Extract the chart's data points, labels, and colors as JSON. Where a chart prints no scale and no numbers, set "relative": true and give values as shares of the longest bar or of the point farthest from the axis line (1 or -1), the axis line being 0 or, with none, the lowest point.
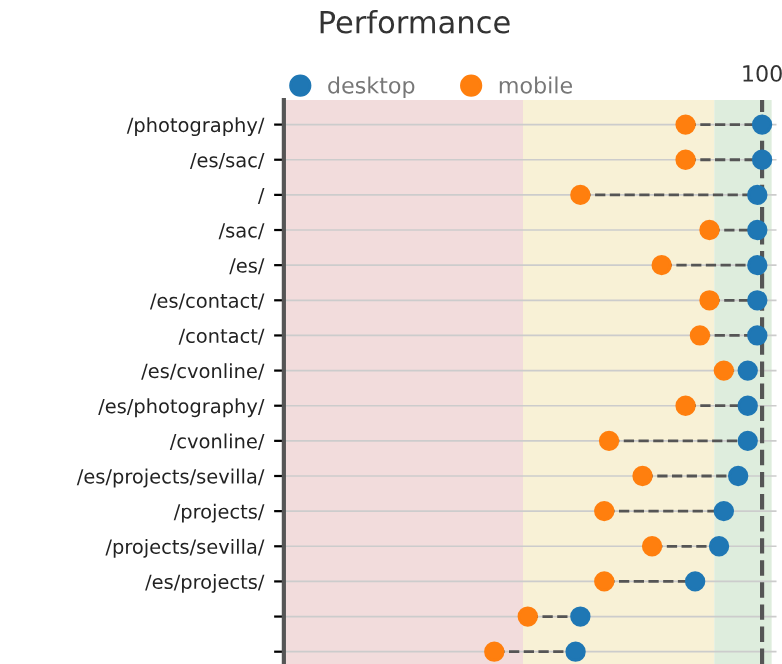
{
  "chart_data": {
    "type": "scatter",
    "title": "Performance",
    "orientation": "horizontal",
    "relative": true,
    "categories": [
      "/photography/",
      "/es/sac/",
      "/",
      "/sac/",
      "/es/",
      "/es/contact/",
      "/contact/",
      "/es/cvonline/",
      "/es/photography/",
      "/cvonline/",
      "/es/projects/sevilla/",
      "/projects/",
      "/projects/sevilla/",
      "/es/projects/",
      null,
      null
    ],
    "series": [
      {
        "name": "desktop",
        "color": "#1f77b4",
        "values": [
          1,
          1,
          0.99,
          0.99,
          0.99,
          0.99,
          0.99,
          0.97,
          0.97,
          0.97,
          0.95,
          0.92,
          0.91,
          0.86,
          0.62,
          0.61
        ]
      },
      {
        "name": "mobile",
        "color": "#ff7f0e",
        "values": [
          0.84,
          0.84,
          0.62,
          0.89,
          0.79,
          0.89,
          0.87,
          0.92,
          0.84,
          0.68,
          0.75,
          0.67,
          0.77,
          0.67,
          0.51,
          0.44
        ]
      }
    ],
    "bands": [
      {
        "axis": "x",
        "from": 0,
        "to": 0.5,
        "color": "#f2dcdc"
      },
      {
        "axis": "x",
        "from": 0.5,
        "to": 0.9,
        "color": "#f8f1d6"
      },
      {
        "axis": "x",
        "from": 0.9,
        "to": 1.02,
        "color": "#deeddd"
      }
    ],
    "ref_lines": [
      {
        "axis": "x",
        "value": 1,
        "label": "100",
        "color": "#555555",
        "line_style": "dashed"
      }
    ],
    "grid": "y",
    "legend": "top",
    "marker": "circle",
    "line_style": "dashed"
  }
}
